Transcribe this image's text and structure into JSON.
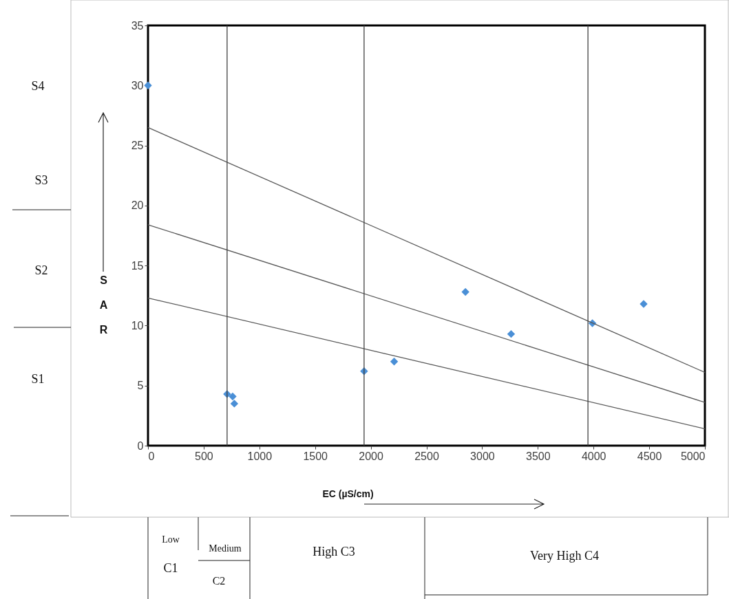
{
  "chart_data": {
    "type": "scatter",
    "xlabel": "EC (µS/cm)",
    "ylabel": "SAR",
    "xlim": [
      0,
      5000
    ],
    "ylim": [
      0,
      35
    ],
    "xticks": [
      0,
      500,
      1000,
      1500,
      2000,
      2500,
      3000,
      3500,
      4000,
      4500,
      5000
    ],
    "yticks": [
      0,
      5,
      10,
      15,
      20,
      25,
      30,
      35
    ],
    "grid": false,
    "series": [
      {
        "marker": "diamond",
        "color": "#4a8fd6",
        "x": [
          0,
          710,
          760,
          775,
          1940,
          2210,
          2850,
          3260,
          3990,
          4450
        ],
        "values": [
          30.0,
          4.3,
          4.1,
          3.5,
          6.2,
          7.0,
          12.8,
          9.3,
          10.2,
          11.8
        ]
      },
      {
        "type": "line",
        "color": "#595959",
        "x": [
          0,
          5000
        ],
        "values": [
          26.5,
          6.1
        ]
      },
      {
        "type": "line",
        "color": "#595959",
        "x": [
          0,
          5000
        ],
        "values": [
          18.4,
          3.6
        ]
      },
      {
        "type": "line",
        "color": "#595959",
        "x": [
          0,
          5000
        ],
        "values": [
          12.3,
          1.4
        ]
      }
    ],
    "ref_lines": [
      {
        "axis": "x",
        "value": 710,
        "color": "#404040"
      },
      {
        "axis": "x",
        "value": 1940,
        "color": "#404040"
      },
      {
        "axis": "x",
        "value": 3950,
        "color": "#404040"
      }
    ],
    "annotations": [
      "S4",
      "S3",
      "S2",
      "S1",
      "Low",
      "C1",
      "Medium",
      "C2",
      "High C3",
      "Very High C4"
    ]
  }
}
